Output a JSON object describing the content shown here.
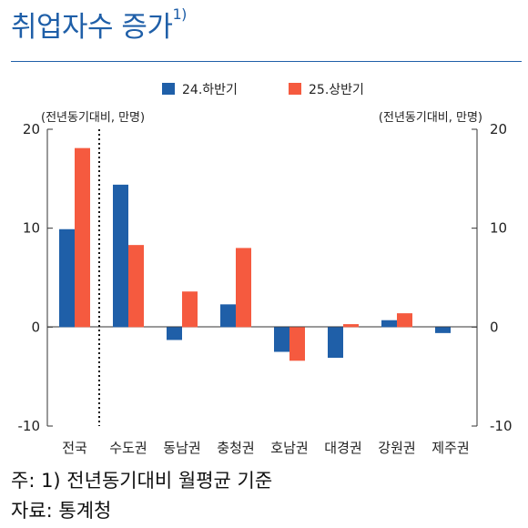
{
  "title": "취업자수 증가",
  "title_sup": "1)",
  "footnote": "주: 1) 전년동기대비 월평균 기준",
  "source": "자료: 통계청",
  "colors": {
    "title": "#1f5fa8",
    "series1": "#1f5fa8",
    "series2": "#f55a3f"
  },
  "chart_data": {
    "type": "bar",
    "unit_left": "(전년동기대비, 만명)",
    "unit_right": "(전년동기대비, 만명)",
    "categories": [
      "전국",
      "수도권",
      "동남권",
      "충청권",
      "호남권",
      "대경권",
      "강원권",
      "제주권"
    ],
    "series": [
      {
        "name": "24.하반기",
        "color": "#1f5fa8",
        "values": [
          9.9,
          14.4,
          -1.3,
          2.3,
          -2.5,
          -3.1,
          0.7,
          -0.6
        ]
      },
      {
        "name": "25.상반기",
        "color": "#f55a3f",
        "values": [
          18.1,
          8.3,
          3.6,
          8.0,
          -3.4,
          0.3,
          1.4,
          0.0
        ]
      }
    ],
    "ylim": [
      -10,
      20
    ],
    "yticks": [
      -10,
      0,
      10,
      20
    ],
    "legend": "top",
    "grid": false
  }
}
